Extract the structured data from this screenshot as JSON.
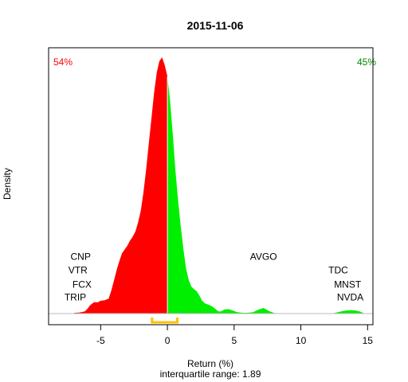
{
  "chart_data": {
    "type": "area",
    "title": "2015-11-06",
    "xlabel": "Return (%)",
    "ylabel": "Density",
    "subtitle": "interquartile range: 1.89",
    "xlim": [
      -8.9,
      15.4
    ],
    "ylim": [
      0,
      1
    ],
    "x_ticks": [
      -5,
      0,
      5,
      10,
      15
    ],
    "x_tick_labels": [
      "-5",
      "0",
      "5",
      "10",
      "15"
    ],
    "split_at": 0,
    "negative_share": "54%",
    "positive_share": "45%",
    "negative_color": "#ff0000",
    "positive_color": "#00ee00",
    "iqr": {
      "low": -1.15,
      "high": 0.74,
      "color": "#ffc000"
    },
    "density": {
      "x": [
        -7.2,
        -6.9,
        -6.6,
        -6.2,
        -6.0,
        -5.8,
        -5.5,
        -5.2,
        -5.0,
        -4.7,
        -4.4,
        -4.2,
        -4.0,
        -3.8,
        -3.6,
        -3.4,
        -3.2,
        -3.0,
        -2.8,
        -2.6,
        -2.4,
        -2.2,
        -2.0,
        -1.8,
        -1.6,
        -1.4,
        -1.2,
        -1.0,
        -0.8,
        -0.6,
        -0.4,
        -0.2,
        0.0,
        0.2,
        0.4,
        0.6,
        0.8,
        1.0,
        1.2,
        1.4,
        1.6,
        1.8,
        2.0,
        2.2,
        2.4,
        2.6,
        2.8,
        3.0,
        3.2,
        3.4,
        3.6,
        3.8,
        4.0,
        4.3,
        4.6,
        4.9,
        5.2,
        5.6,
        6.0,
        6.4,
        6.8,
        7.2,
        7.6,
        8.0,
        8.5,
        9.0,
        10.0,
        11.0,
        12.0,
        12.5,
        13.0,
        13.4,
        13.8,
        14.1,
        14.4,
        14.8
      ],
      "y": [
        0.0,
        0.003,
        0.004,
        0.008,
        0.018,
        0.032,
        0.044,
        0.044,
        0.05,
        0.052,
        0.058,
        0.09,
        0.13,
        0.17,
        0.205,
        0.235,
        0.25,
        0.265,
        0.285,
        0.3,
        0.32,
        0.355,
        0.4,
        0.47,
        0.56,
        0.66,
        0.76,
        0.86,
        0.94,
        0.985,
        1.0,
        0.97,
        0.925,
        0.83,
        0.7,
        0.56,
        0.44,
        0.34,
        0.25,
        0.175,
        0.13,
        0.105,
        0.095,
        0.087,
        0.07,
        0.05,
        0.04,
        0.036,
        0.032,
        0.026,
        0.018,
        0.009,
        0.008,
        0.016,
        0.017,
        0.012,
        0.006,
        0.003,
        0.003,
        0.005,
        0.015,
        0.022,
        0.01,
        0.002,
        0.001,
        0.0,
        0.0,
        0.0,
        0.0,
        0.002,
        0.008,
        0.012,
        0.013,
        0.012,
        0.008,
        0.0
      ]
    },
    "annotations": [
      {
        "text": "CNP",
        "x": -6.5,
        "y": 0.209
      },
      {
        "text": "VTR",
        "x": -6.7,
        "y": 0.157
      },
      {
        "text": "FCX",
        "x": -6.4,
        "y": 0.101
      },
      {
        "text": "TRIP",
        "x": -6.9,
        "y": 0.052
      },
      {
        "text": "AVGO",
        "x": 7.2,
        "y": 0.209
      },
      {
        "text": "TDC",
        "x": 12.8,
        "y": 0.157
      },
      {
        "text": "MNST",
        "x": 13.5,
        "y": 0.101
      },
      {
        "text": "NVDA",
        "x": 13.7,
        "y": 0.052
      }
    ]
  }
}
